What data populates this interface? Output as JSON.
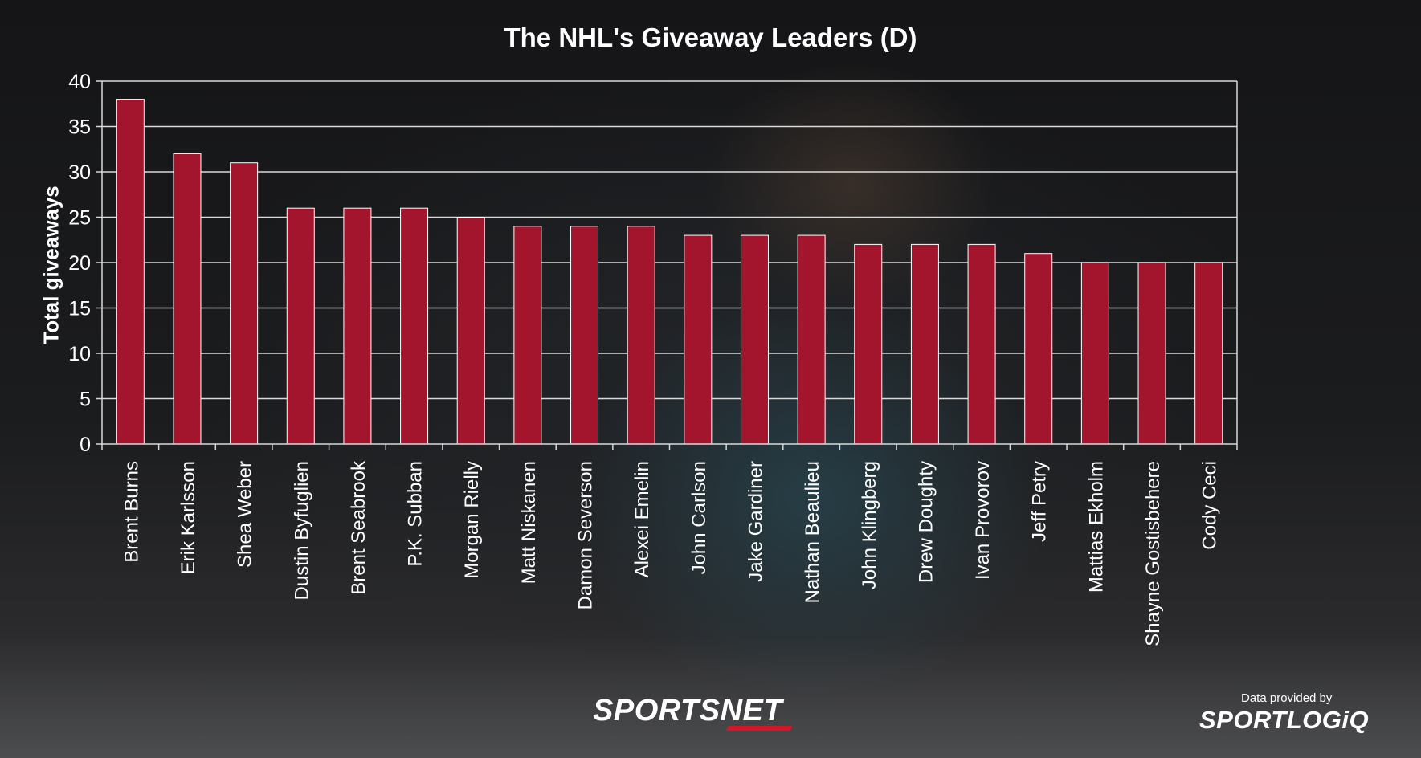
{
  "chart_data": {
    "type": "bar",
    "title": "The NHL's Giveaway Leaders (D)",
    "xlabel": "",
    "ylabel": "Total giveaways",
    "ylim": [
      0,
      40
    ],
    "yticks": [
      0,
      5,
      10,
      15,
      20,
      25,
      30,
      35,
      40
    ],
    "grid": true,
    "bar_color": "#a3152d",
    "categories": [
      "Brent Burns",
      "Erik Karlsson",
      "Shea Weber",
      "Dustin Byfuglien",
      "Brent Seabrook",
      "P.K. Subban",
      "Morgan Rielly",
      "Matt Niskanen",
      "Damon Severson",
      "Alexei Emelin",
      "John Carlson",
      "Jake Gardiner",
      "Nathan Beaulieu",
      "John Klingberg",
      "Drew Doughty",
      "Ivan Provorov",
      "Jeff Petry",
      "Mattias Ekholm",
      "Shayne Gostisbehere",
      "Cody Ceci"
    ],
    "values": [
      38,
      32,
      31,
      26,
      26,
      26,
      25,
      24,
      24,
      24,
      23,
      23,
      23,
      22,
      22,
      22,
      21,
      20,
      20,
      20
    ]
  },
  "branding": {
    "logo_text": "SPORTSNET",
    "logo_accent_color": "#d0182b",
    "credit_text": "Data provided by",
    "credit_logo": "SPORTLOGiQ"
  }
}
